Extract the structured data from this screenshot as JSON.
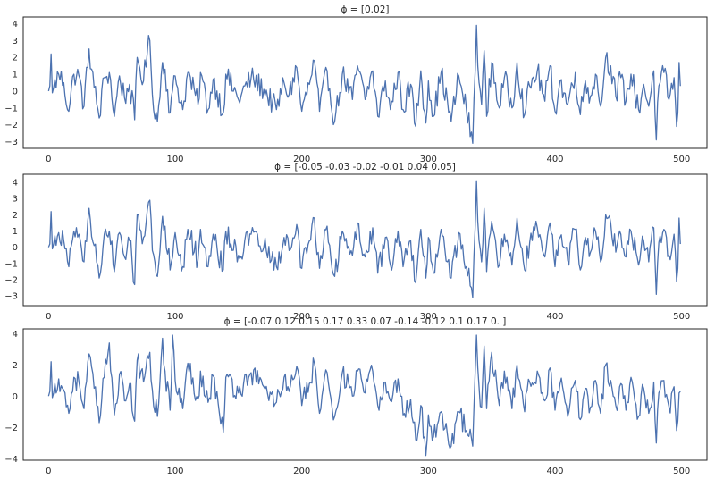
{
  "figure": {
    "background": "#ffffff",
    "line_color": "#4c72b0",
    "frame_color": "#262626"
  },
  "chart_data": [
    {
      "type": "line",
      "title": "ϕ = [0.02]",
      "xlabel": "",
      "ylabel": "",
      "xlim": [
        -20,
        520
      ],
      "ylim": [
        -3.4,
        4.4
      ],
      "xticks": [
        0,
        100,
        200,
        300,
        400,
        500
      ],
      "yticks": [
        -3,
        -2,
        -1,
        0,
        1,
        2,
        3,
        4
      ],
      "grid": false,
      "n_points": 500,
      "anchors": [
        [
          0,
          0.0
        ],
        [
          1,
          0.3
        ],
        [
          2,
          2.2
        ],
        [
          3,
          -0.1
        ],
        [
          4,
          0.2
        ],
        [
          8,
          1.0
        ],
        [
          12,
          0.5
        ],
        [
          16,
          -1.2
        ],
        [
          20,
          1.0
        ],
        [
          24,
          0.9
        ],
        [
          28,
          -0.9
        ],
        [
          32,
          2.5
        ],
        [
          36,
          0.2
        ],
        [
          40,
          -1.6
        ],
        [
          44,
          0.8
        ],
        [
          48,
          1.1
        ],
        [
          52,
          -1.5
        ],
        [
          56,
          0.9
        ],
        [
          60,
          -0.4
        ],
        [
          64,
          0.4
        ],
        [
          68,
          -1.7
        ],
        [
          70,
          2.0
        ],
        [
          75,
          0.6
        ],
        [
          78,
          2.3
        ],
        [
          80,
          3.0
        ],
        [
          82,
          -0.2
        ],
        [
          86,
          -1.8
        ],
        [
          90,
          1.7
        ],
        [
          92,
          1.3
        ],
        [
          96,
          -1.3
        ],
        [
          100,
          0.9
        ],
        [
          106,
          -1.1
        ],
        [
          110,
          1.1
        ],
        [
          118,
          -0.8
        ],
        [
          120,
          1.1
        ],
        [
          126,
          -1.1
        ],
        [
          130,
          0.7
        ],
        [
          138,
          -1.3
        ],
        [
          140,
          1.0
        ],
        [
          150,
          -0.5
        ],
        [
          160,
          0.8
        ],
        [
          170,
          0.1
        ],
        [
          180,
          -1.1
        ],
        [
          186,
          0.5
        ],
        [
          190,
          -0.2
        ],
        [
          196,
          1.4
        ],
        [
          200,
          -1.2
        ],
        [
          206,
          0.4
        ],
        [
          210,
          1.8
        ],
        [
          214,
          -1.2
        ],
        [
          220,
          1.2
        ],
        [
          226,
          -1.8
        ],
        [
          232,
          1.0
        ],
        [
          240,
          -0.5
        ],
        [
          244,
          1.5
        ],
        [
          250,
          -0.5
        ],
        [
          256,
          1.2
        ],
        [
          260,
          -1.5
        ],
        [
          266,
          0.6
        ],
        [
          270,
          -1.1
        ],
        [
          276,
          1.1
        ],
        [
          280,
          -1.1
        ],
        [
          286,
          0.4
        ],
        [
          290,
          -2.1
        ],
        [
          294,
          1.2
        ],
        [
          298,
          -1.9
        ],
        [
          300,
          0.6
        ],
        [
          304,
          -1.5
        ],
        [
          310,
          1.1
        ],
        [
          318,
          -1.8
        ],
        [
          324,
          0.9
        ],
        [
          330,
          -1.1
        ],
        [
          335,
          -3.1
        ],
        [
          338,
          3.9
        ],
        [
          340,
          0.5
        ],
        [
          342,
          -0.8
        ],
        [
          344,
          2.4
        ],
        [
          346,
          -1.5
        ],
        [
          350,
          1.7
        ],
        [
          356,
          -1.0
        ],
        [
          360,
          0.8
        ],
        [
          366,
          -1.0
        ],
        [
          370,
          1.7
        ],
        [
          376,
          -1.4
        ],
        [
          380,
          0.3
        ],
        [
          386,
          1.2
        ],
        [
          392,
          -0.6
        ],
        [
          396,
          1.5
        ],
        [
          400,
          -1.2
        ],
        [
          404,
          0.6
        ],
        [
          410,
          -0.8
        ],
        [
          416,
          1.1
        ],
        [
          420,
          -1.4
        ],
        [
          424,
          0.6
        ],
        [
          428,
          -0.3
        ],
        [
          432,
          1.0
        ],
        [
          436,
          -0.9
        ],
        [
          440,
          2.0
        ],
        [
          444,
          1.5
        ],
        [
          448,
          -0.3
        ],
        [
          452,
          0.8
        ],
        [
          456,
          -0.6
        ],
        [
          460,
          1.0
        ],
        [
          466,
          -1.1
        ],
        [
          470,
          0.4
        ],
        [
          474,
          -0.9
        ],
        [
          478,
          1.2
        ],
        [
          480,
          -2.9
        ],
        [
          482,
          0.3
        ],
        [
          486,
          1.1
        ],
        [
          490,
          -0.5
        ],
        [
          494,
          0.8
        ],
        [
          496,
          -2.1
        ],
        [
          497,
          -1.3
        ],
        [
          498,
          1.7
        ],
        [
          499,
          0.3
        ]
      ]
    },
    {
      "type": "line",
      "title": "ϕ = [-0.05 -0.03 -0.02 -0.01  0.04  0.05]",
      "xlabel": "",
      "ylabel": "",
      "xlim": [
        -20,
        520
      ],
      "ylim": [
        -3.6,
        4.5
      ],
      "xticks": [
        0,
        100,
        200,
        300,
        400,
        500
      ],
      "yticks": [
        -3,
        -2,
        -1,
        0,
        1,
        2,
        3,
        4
      ],
      "grid": false,
      "n_points": 500,
      "anchors": [
        [
          0,
          0.0
        ],
        [
          1,
          0.2
        ],
        [
          2,
          2.2
        ],
        [
          3,
          -0.1
        ],
        [
          4,
          0.2
        ],
        [
          8,
          0.9
        ],
        [
          12,
          0.4
        ],
        [
          16,
          -1.2
        ],
        [
          20,
          1.0
        ],
        [
          24,
          0.8
        ],
        [
          28,
          -0.9
        ],
        [
          32,
          2.4
        ],
        [
          36,
          0.1
        ],
        [
          40,
          -1.9
        ],
        [
          44,
          0.8
        ],
        [
          48,
          1.0
        ],
        [
          52,
          -1.5
        ],
        [
          56,
          0.9
        ],
        [
          60,
          -0.6
        ],
        [
          64,
          0.4
        ],
        [
          68,
          -2.3
        ],
        [
          70,
          2.0
        ],
        [
          75,
          0.6
        ],
        [
          78,
          2.3
        ],
        [
          80,
          2.9
        ],
        [
          82,
          -0.2
        ],
        [
          86,
          -1.8
        ],
        [
          90,
          1.9
        ],
        [
          92,
          1.3
        ],
        [
          96,
          -1.4
        ],
        [
          100,
          0.9
        ],
        [
          106,
          -1.2
        ],
        [
          110,
          1.1
        ],
        [
          118,
          -0.8
        ],
        [
          120,
          1.1
        ],
        [
          126,
          -1.2
        ],
        [
          130,
          0.8
        ],
        [
          138,
          -1.4
        ],
        [
          140,
          1.0
        ],
        [
          150,
          -0.5
        ],
        [
          160,
          0.8
        ],
        [
          170,
          0.0
        ],
        [
          180,
          -1.2
        ],
        [
          186,
          0.6
        ],
        [
          190,
          -0.2
        ],
        [
          196,
          1.4
        ],
        [
          200,
          -1.3
        ],
        [
          206,
          0.4
        ],
        [
          210,
          1.8
        ],
        [
          214,
          -1.3
        ],
        [
          220,
          1.3
        ],
        [
          226,
          -1.8
        ],
        [
          232,
          1.0
        ],
        [
          240,
          -0.5
        ],
        [
          244,
          1.5
        ],
        [
          250,
          -0.6
        ],
        [
          256,
          1.2
        ],
        [
          260,
          -1.6
        ],
        [
          266,
          0.6
        ],
        [
          270,
          -1.1
        ],
        [
          276,
          1.0
        ],
        [
          280,
          -1.2
        ],
        [
          286,
          0.4
        ],
        [
          290,
          -2.2
        ],
        [
          294,
          1.1
        ],
        [
          298,
          -1.9
        ],
        [
          300,
          0.6
        ],
        [
          304,
          -1.6
        ],
        [
          310,
          1.1
        ],
        [
          318,
          -1.9
        ],
        [
          324,
          0.9
        ],
        [
          330,
          -1.2
        ],
        [
          335,
          -3.1
        ],
        [
          338,
          4.1
        ],
        [
          340,
          0.4
        ],
        [
          342,
          -0.9
        ],
        [
          344,
          2.4
        ],
        [
          346,
          -1.5
        ],
        [
          350,
          1.6
        ],
        [
          356,
          -1.1
        ],
        [
          360,
          0.8
        ],
        [
          366,
          -1.1
        ],
        [
          370,
          1.8
        ],
        [
          376,
          -1.4
        ],
        [
          380,
          0.3
        ],
        [
          386,
          1.2
        ],
        [
          392,
          -0.6
        ],
        [
          396,
          1.5
        ],
        [
          400,
          -1.2
        ],
        [
          404,
          0.6
        ],
        [
          410,
          -0.8
        ],
        [
          416,
          1.1
        ],
        [
          420,
          -1.4
        ],
        [
          424,
          0.6
        ],
        [
          428,
          -0.3
        ],
        [
          432,
          1.0
        ],
        [
          436,
          -0.9
        ],
        [
          440,
          2.0
        ],
        [
          444,
          1.5
        ],
        [
          448,
          -0.3
        ],
        [
          452,
          0.8
        ],
        [
          456,
          -0.6
        ],
        [
          460,
          1.0
        ],
        [
          466,
          -1.1
        ],
        [
          470,
          0.4
        ],
        [
          474,
          -0.9
        ],
        [
          478,
          1.2
        ],
        [
          480,
          -2.9
        ],
        [
          482,
          0.3
        ],
        [
          486,
          1.1
        ],
        [
          490,
          -0.5
        ],
        [
          494,
          0.8
        ],
        [
          496,
          -2.1
        ],
        [
          497,
          -1.3
        ],
        [
          498,
          1.8
        ],
        [
          499,
          0.2
        ]
      ]
    },
    {
      "type": "line",
      "title": "ϕ = [-0.07  0.12  0.15  0.17  0.33  0.07 -0.14 -0.12  0.1   0.17  0.  ]",
      "xlabel": "",
      "ylabel": "",
      "xlim": [
        -20,
        520
      ],
      "ylim": [
        -4.1,
        4.3
      ],
      "xticks": [
        0,
        100,
        200,
        300,
        400,
        500
      ],
      "yticks": [
        -4,
        -2,
        0,
        2,
        4
      ],
      "grid": false,
      "n_points": 500,
      "anchors": [
        [
          0,
          0.0
        ],
        [
          1,
          0.3
        ],
        [
          2,
          2.2
        ],
        [
          3,
          -0.1
        ],
        [
          4,
          0.2
        ],
        [
          8,
          1.1
        ],
        [
          12,
          0.4
        ],
        [
          16,
          -1.1
        ],
        [
          20,
          1.2
        ],
        [
          24,
          0.9
        ],
        [
          28,
          -0.8
        ],
        [
          32,
          2.7
        ],
        [
          36,
          0.5
        ],
        [
          40,
          -1.7
        ],
        [
          44,
          1.2
        ],
        [
          48,
          3.4
        ],
        [
          52,
          -1.2
        ],
        [
          56,
          1.4
        ],
        [
          60,
          -0.3
        ],
        [
          64,
          0.8
        ],
        [
          68,
          -1.6
        ],
        [
          70,
          2.3
        ],
        [
          75,
          0.9
        ],
        [
          78,
          2.6
        ],
        [
          80,
          2.8
        ],
        [
          82,
          0.4
        ],
        [
          86,
          -1.3
        ],
        [
          90,
          3.7
        ],
        [
          92,
          1.6
        ],
        [
          96,
          -0.9
        ],
        [
          98,
          3.9
        ],
        [
          100,
          1.0
        ],
        [
          106,
          -0.8
        ],
        [
          110,
          2.1
        ],
        [
          118,
          -0.2
        ],
        [
          120,
          1.6
        ],
        [
          126,
          -0.4
        ],
        [
          130,
          1.3
        ],
        [
          138,
          -2.3
        ],
        [
          140,
          1.2
        ],
        [
          150,
          0.2
        ],
        [
          160,
          1.5
        ],
        [
          170,
          0.6
        ],
        [
          180,
          -0.4
        ],
        [
          186,
          1.2
        ],
        [
          190,
          0.3
        ],
        [
          196,
          1.9
        ],
        [
          200,
          -0.6
        ],
        [
          206,
          0.8
        ],
        [
          210,
          2.1
        ],
        [
          214,
          -1.1
        ],
        [
          220,
          1.5
        ],
        [
          226,
          -1.3
        ],
        [
          232,
          1.5
        ],
        [
          240,
          0.0
        ],
        [
          244,
          1.6
        ],
        [
          250,
          0.2
        ],
        [
          256,
          1.6
        ],
        [
          260,
          -0.6
        ],
        [
          266,
          0.9
        ],
        [
          270,
          -0.3
        ],
        [
          276,
          1.1
        ],
        [
          280,
          -1.2
        ],
        [
          286,
          -0.2
        ],
        [
          290,
          -2.8
        ],
        [
          294,
          -0.6
        ],
        [
          298,
          -3.8
        ],
        [
          300,
          -1.2
        ],
        [
          304,
          -2.6
        ],
        [
          310,
          -1.0
        ],
        [
          318,
          -3.2
        ],
        [
          324,
          -1.0
        ],
        [
          330,
          -2.2
        ],
        [
          335,
          -3.2
        ],
        [
          338,
          3.9
        ],
        [
          340,
          0.6
        ],
        [
          342,
          -0.7
        ],
        [
          344,
          3.2
        ],
        [
          346,
          -0.8
        ],
        [
          350,
          2.8
        ],
        [
          356,
          -0.6
        ],
        [
          360,
          1.6
        ],
        [
          366,
          -0.8
        ],
        [
          370,
          2.0
        ],
        [
          376,
          -1.0
        ],
        [
          380,
          0.9
        ],
        [
          386,
          1.6
        ],
        [
          392,
          -0.3
        ],
        [
          396,
          1.8
        ],
        [
          400,
          -0.9
        ],
        [
          404,
          0.8
        ],
        [
          410,
          -1.3
        ],
        [
          416,
          1.0
        ],
        [
          420,
          -1.5
        ],
        [
          424,
          0.5
        ],
        [
          428,
          -0.7
        ],
        [
          432,
          1.0
        ],
        [
          436,
          -1.1
        ],
        [
          440,
          2.0
        ],
        [
          444,
          1.0
        ],
        [
          448,
          -0.6
        ],
        [
          452,
          0.8
        ],
        [
          456,
          -0.9
        ],
        [
          460,
          1.2
        ],
        [
          466,
          -1.3
        ],
        [
          470,
          0.5
        ],
        [
          474,
          -1.1
        ],
        [
          478,
          0.9
        ],
        [
          480,
          -3.0
        ],
        [
          482,
          0.2
        ],
        [
          486,
          1.0
        ],
        [
          490,
          -0.7
        ],
        [
          494,
          0.6
        ],
        [
          496,
          -2.2
        ],
        [
          497,
          -1.6
        ],
        [
          498,
          0.2
        ],
        [
          499,
          0.3
        ]
      ]
    }
  ]
}
